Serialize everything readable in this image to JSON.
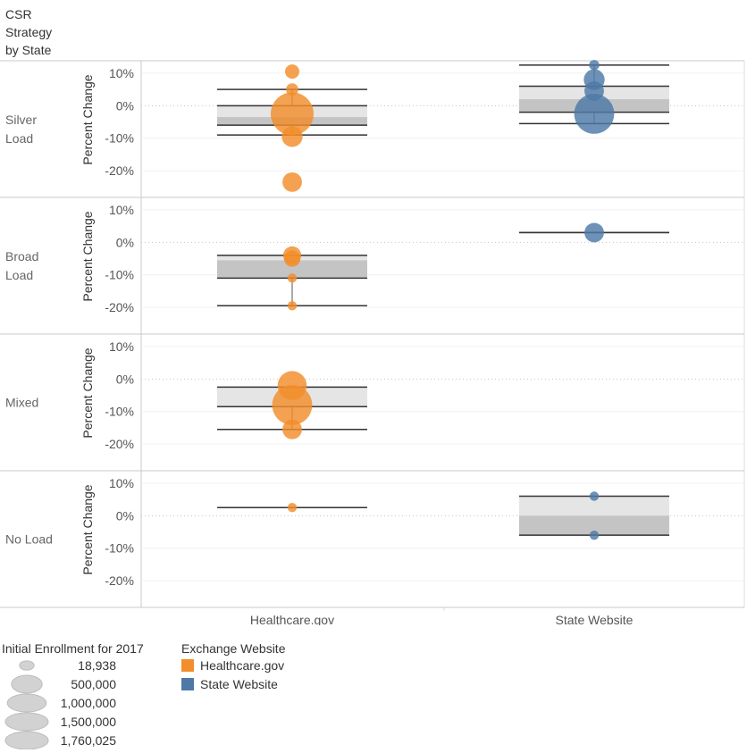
{
  "chart_data": {
    "type": "scatter",
    "title": "CSR Strategy by State",
    "title_lines": [
      "CSR",
      "Strategy",
      "by State"
    ],
    "ylabel": "Percent Change",
    "ylim": [
      -27,
      13
    ],
    "yticks": [
      10,
      0,
      -10,
      -20
    ],
    "ytick_labels": [
      "10%",
      "0%",
      "-10%",
      "-20%"
    ],
    "columns": [
      "Healthcare.gov",
      "State Website"
    ],
    "rows": [
      {
        "label_lines": [
          "Silver",
          "Load"
        ]
      },
      {
        "label_lines": [
          "Broad",
          "Load"
        ]
      },
      {
        "label_lines": [
          "Mixed"
        ]
      },
      {
        "label_lines": [
          "No Load"
        ]
      }
    ],
    "colors": {
      "Healthcare.gov": "#f28e2b",
      "State Website": "#4e79a7"
    },
    "cells": [
      {
        "row": 0,
        "col": 0,
        "box": {
          "lower_whisker": -9,
          "q1": -6,
          "median": -3.5,
          "q3": 0,
          "upper_whisker": 5
        },
        "points": [
          {
            "y": 10.5,
            "enroll": 100000
          },
          {
            "y": 5,
            "enroll": 60000
          },
          {
            "y": -2.5,
            "enroll": 1760025
          },
          {
            "y": -9.5,
            "enroll": 300000
          },
          {
            "y": -23.5,
            "enroll": 250000
          }
        ]
      },
      {
        "row": 0,
        "col": 1,
        "box": {
          "lower_whisker": -5.5,
          "q1": -2,
          "median": 2,
          "q3": 6,
          "upper_whisker": 12.5
        },
        "points": [
          {
            "y": 12.5,
            "enroll": 30000
          },
          {
            "y": 8,
            "enroll": 300000
          },
          {
            "y": 4.5,
            "enroll": 250000
          },
          {
            "y": -2.5,
            "enroll": 1500000
          }
        ]
      },
      {
        "row": 1,
        "col": 0,
        "box": {
          "lower_whisker": -19.5,
          "q1": -11,
          "median": -5.5,
          "q3": -4,
          "upper_whisker": -4
        },
        "points": [
          {
            "y": -4,
            "enroll": 200000
          },
          {
            "y": -5,
            "enroll": 150000
          },
          {
            "y": -11,
            "enroll": 18938
          },
          {
            "y": -19.5,
            "enroll": 18938
          }
        ]
      },
      {
        "row": 1,
        "col": 1,
        "box": {
          "lower_whisker": 3,
          "q1": 3,
          "median": 3,
          "q3": 3,
          "upper_whisker": 3
        },
        "points": [
          {
            "y": 3,
            "enroll": 250000
          }
        ]
      },
      {
        "row": 2,
        "col": 0,
        "box": {
          "lower_whisker": -15.5,
          "q1": -8.5,
          "median": -8.5,
          "q3": -2.5,
          "upper_whisker": -2.5
        },
        "points": [
          {
            "y": -2,
            "enroll": 700000
          },
          {
            "y": -8,
            "enroll": 1500000
          },
          {
            "y": -15.5,
            "enroll": 250000
          }
        ]
      },
      {
        "row": 3,
        "col": 0,
        "box": {
          "lower_whisker": 2.5,
          "q1": 2.5,
          "median": 2.5,
          "q3": 2.5,
          "upper_whisker": 2.5
        },
        "points": [
          {
            "y": 2.5,
            "enroll": 18938
          }
        ]
      },
      {
        "row": 3,
        "col": 1,
        "box": {
          "lower_whisker": -6,
          "q1": -6,
          "median": 0,
          "q3": 6,
          "upper_whisker": 6
        },
        "points": [
          {
            "y": 6,
            "enroll": 18938
          },
          {
            "y": -6,
            "enroll": 18938
          }
        ]
      }
    ],
    "size_legend": {
      "title": "Initial Enrollment for 2017",
      "items": [
        {
          "label": "18,938",
          "value": 18938
        },
        {
          "label": "500,000",
          "value": 500000
        },
        {
          "label": "1,000,000",
          "value": 1000000
        },
        {
          "label": "1,500,000",
          "value": 1500000
        },
        {
          "label": "1,760,025",
          "value": 1760025
        }
      ]
    },
    "color_legend": {
      "title": "Exchange Website",
      "items": [
        {
          "label": "Healthcare.gov",
          "color": "#f28e2b"
        },
        {
          "label": "State Website",
          "color": "#4e79a7"
        }
      ]
    }
  }
}
